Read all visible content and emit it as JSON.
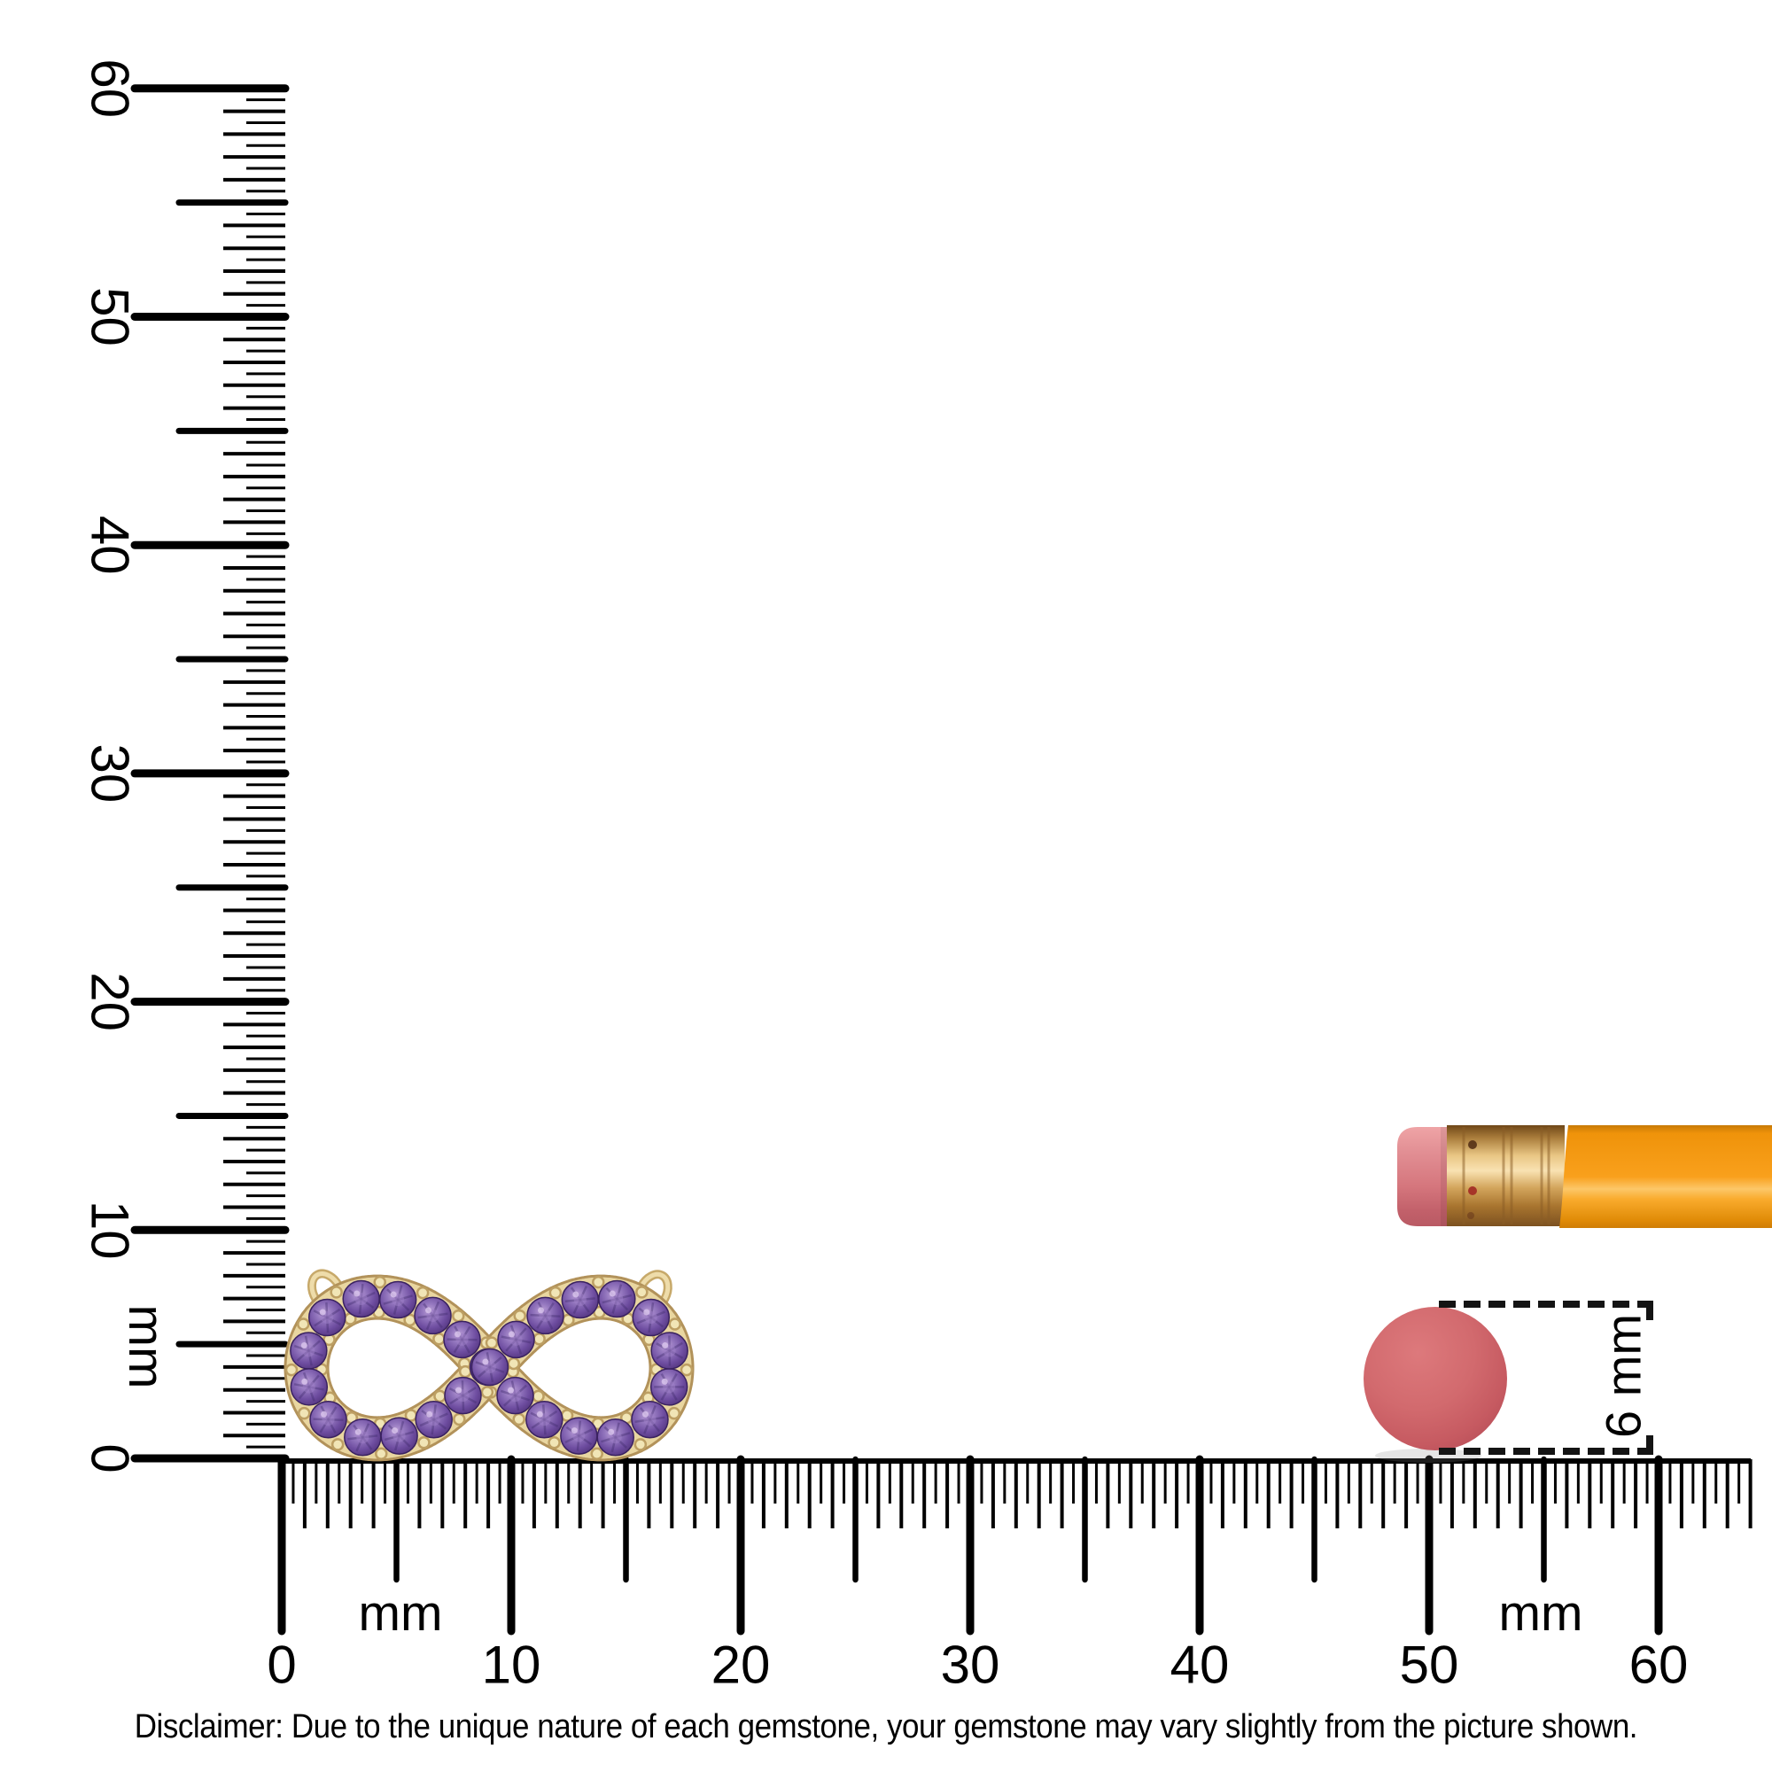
{
  "page": {
    "background": "#ffffff",
    "ink": "#000000"
  },
  "vertical_ruler": {
    "unit": "mm",
    "tick_labels": [
      "60",
      "50",
      "40",
      "30",
      "20",
      "10",
      "0"
    ],
    "range_mm": [
      0,
      60
    ]
  },
  "horizontal_ruler": {
    "unit": "mm",
    "tick_labels": [
      "0",
      "10",
      "20",
      "30",
      "40",
      "50",
      "60"
    ],
    "range_mm": [
      0,
      64
    ]
  },
  "size_callout": {
    "label": "6 mm",
    "diameter_mm": 6
  },
  "eraser_dot": {
    "color": "#cd5f65"
  },
  "pencil": {
    "eraser_color": "#d87f85",
    "ferrule_color": "#d3a55c",
    "body_color": "#f89d13"
  },
  "pendant": {
    "name": "Infinity pendant with purple gemstones",
    "stone_count": 26,
    "metal_color": "#e9d6a0",
    "metal_edge_color": "#b2925a",
    "stone_color": "#6e4da0",
    "stone_light_color": "#bda0d8",
    "stone_dark_color": "#4a2d72",
    "bead_color": "#f1e5b6"
  },
  "disclaimer": "Disclaimer: Due to the unique nature of each gemstone, your gemstone may vary slightly from the picture shown."
}
